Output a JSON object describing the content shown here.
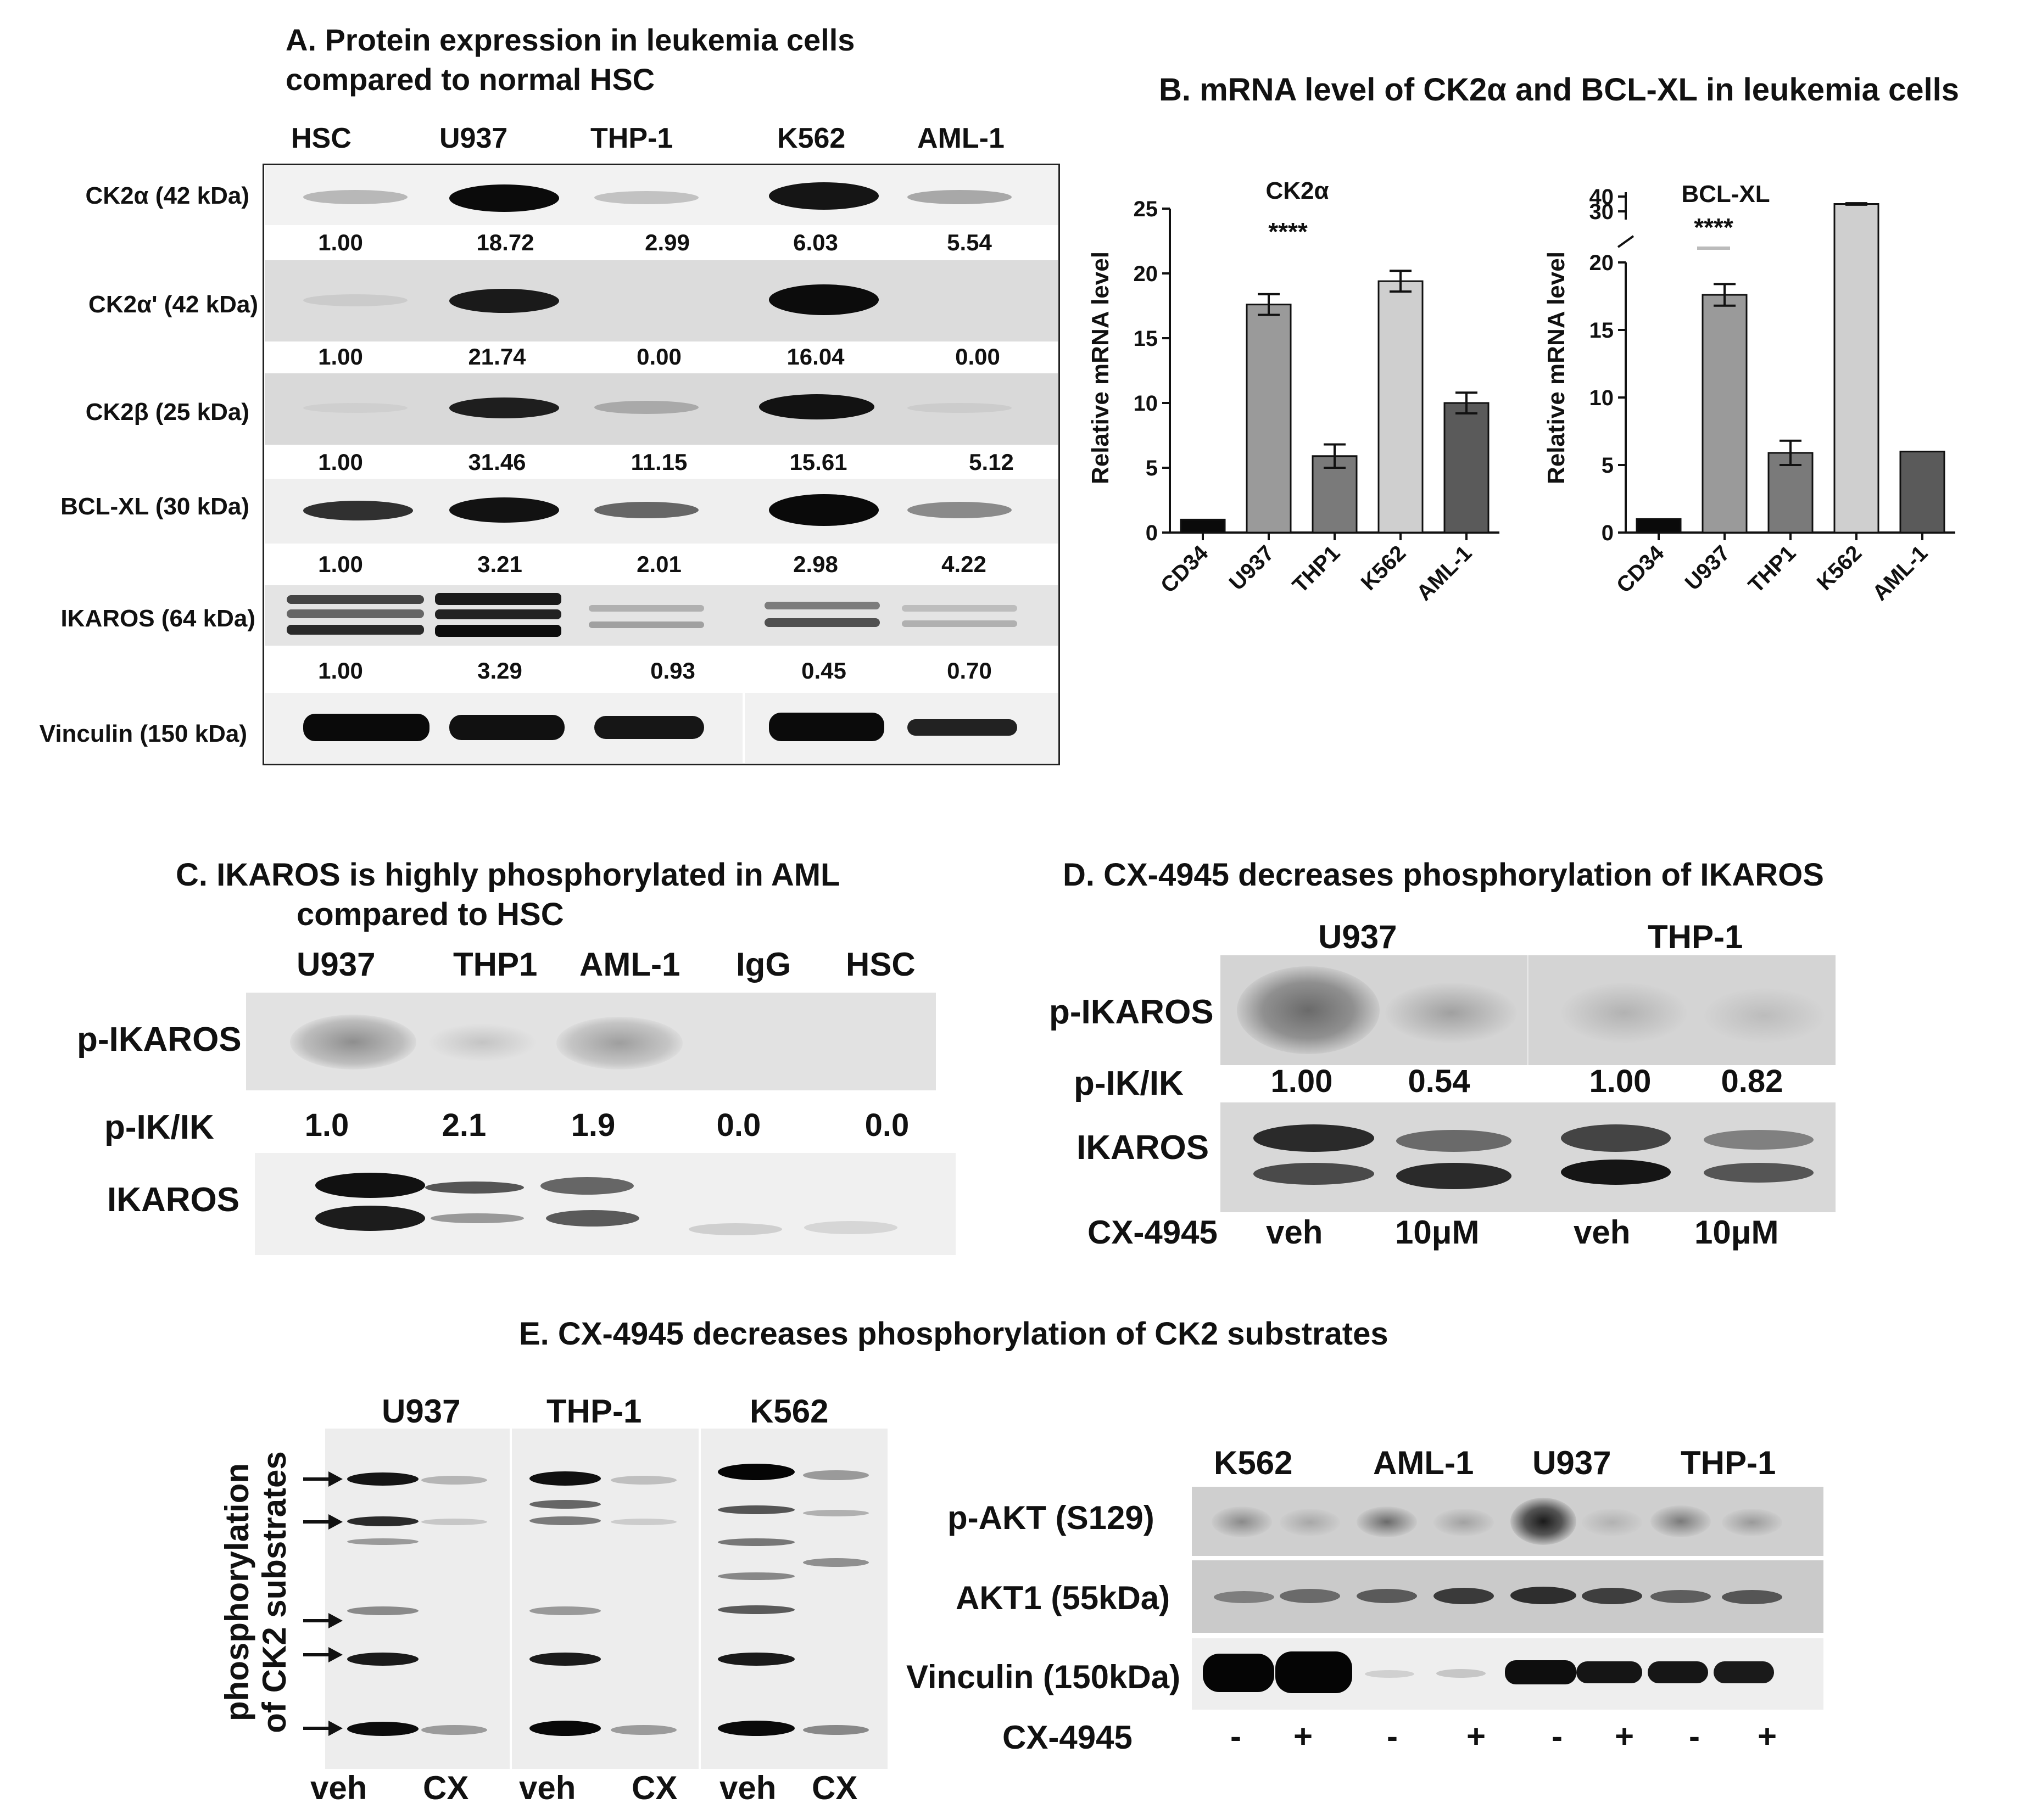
{
  "panel_a": {
    "title_line1": "A.  Protein expression in leukemia cells",
    "title_line2": "compared to normal HSC",
    "lanes": [
      "HSC",
      "U937",
      "THP-1",
      "K562",
      "AML-1"
    ],
    "rows": [
      {
        "label": "CK2α (42 kDa)",
        "values": [
          "1.00",
          "18.72",
          "2.99",
          "6.03",
          "5.54"
        ]
      },
      {
        "label": "CK2α' (42 kDa)",
        "values": [
          "1.00",
          "21.74",
          "0.00",
          "16.04",
          "0.00"
        ]
      },
      {
        "label": "CK2β (25 kDa)",
        "values": [
          "1.00",
          "31.46",
          "11.15",
          "15.61",
          "5.12"
        ]
      },
      {
        "label": "BCL-XL (30 kDa)",
        "values": [
          "1.00",
          "3.21",
          "2.01",
          "2.98",
          "4.22"
        ]
      },
      {
        "label": "IKAROS (64 kDa)",
        "values": [
          "1.00",
          "3.29",
          "0.93",
          "0.45",
          "0.70"
        ]
      },
      {
        "label": "Vinculin (150 kDa)",
        "values": []
      }
    ]
  },
  "panel_b": {
    "title": "B.  mRNA level of CK2α and BCL-XL in leukemia cells",
    "categories": [
      "CD34",
      "U937",
      "THP1",
      "K562",
      "AML-1"
    ],
    "ylabel": "Relative mRNA level",
    "significance": "****",
    "left_ticks": [
      "0",
      "5",
      "10",
      "15",
      "20",
      "25"
    ],
    "right_ticks": [
      "0",
      "5",
      "10",
      "15",
      "20",
      "30",
      "40"
    ]
  },
  "chart_data": [
    {
      "type": "bar",
      "title": "CK2α",
      "categories": [
        "CD34",
        "U937",
        "THP1",
        "K562",
        "AML-1"
      ],
      "values": [
        1.0,
        17.6,
        5.9,
        19.4,
        10.0
      ],
      "errors": [
        0,
        0.8,
        0.9,
        0.8,
        0.8
      ],
      "ylabel": "Relative mRNA level",
      "ylim": [
        0,
        25
      ],
      "colors": [
        "#0a0a0a",
        "#9a9a9a",
        "#7a7a7a",
        "#cfcfcf",
        "#5a5a5a"
      ]
    },
    {
      "type": "bar",
      "title": "BCL-XL",
      "categories": [
        "CD34",
        "U937",
        "THP1",
        "K562",
        "AML-1"
      ],
      "values": [
        1.0,
        17.6,
        5.9,
        35.0,
        6.0
      ],
      "errors": [
        0,
        0.8,
        0.9,
        0.5,
        0
      ],
      "ylabel": "Relative mRNA level",
      "ylim": [
        0,
        40
      ],
      "axis_break": [
        20,
        30
      ],
      "colors": [
        "#0a0a0a",
        "#9a9a9a",
        "#7a7a7a",
        "#cfcfcf",
        "#5a5a5a"
      ]
    }
  ],
  "panel_c": {
    "title_line1": "C. IKAROS is highly phosphorylated in AML",
    "title_line2": "compared to HSC",
    "lanes": [
      "U937",
      "THP1",
      "AML-1",
      "IgG",
      "HSC"
    ],
    "row1_label": "p-IKAROS",
    "ratio_label": "p-IK/IK",
    "ratios": [
      "1.0",
      "2.1",
      "1.9",
      "0.0",
      "0.0"
    ],
    "row2_label": "IKAROS"
  },
  "panel_d": {
    "title": "D. CX-4945 decreases phosphorylation of IKAROS",
    "groups": [
      "U937",
      "THP-1"
    ],
    "row1_label": "p-IKAROS",
    "ratio_label": "p-IK/IK",
    "ratios": [
      "1.00",
      "0.54",
      "1.00",
      "0.82"
    ],
    "row2_label": "IKAROS",
    "treatment_label": "CX-4945",
    "treatments": [
      "veh",
      "10μM",
      "veh",
      "10μM"
    ]
  },
  "panel_e": {
    "title": "E. CX-4945 decreases phosphorylation of CK2 substrates",
    "left_groups": [
      "U937",
      "THP-1",
      "K562"
    ],
    "left_ylabel_line1": "phosphorylation",
    "left_ylabel_line2": "of CK2 substrates",
    "left_lanes": [
      "veh",
      "CX",
      "veh",
      "CX",
      "veh",
      "CX"
    ],
    "right_groups": [
      "K562",
      "AML-1",
      "U937",
      "THP-1"
    ],
    "right_rows": [
      "p-AKT (S129)",
      "AKT1 (55kDa)",
      "Vinculin (150kDa)"
    ],
    "treatment_label": "CX-4945",
    "signs": [
      "-",
      "+",
      "-",
      "+",
      "-",
      "+",
      "-",
      "+"
    ]
  }
}
